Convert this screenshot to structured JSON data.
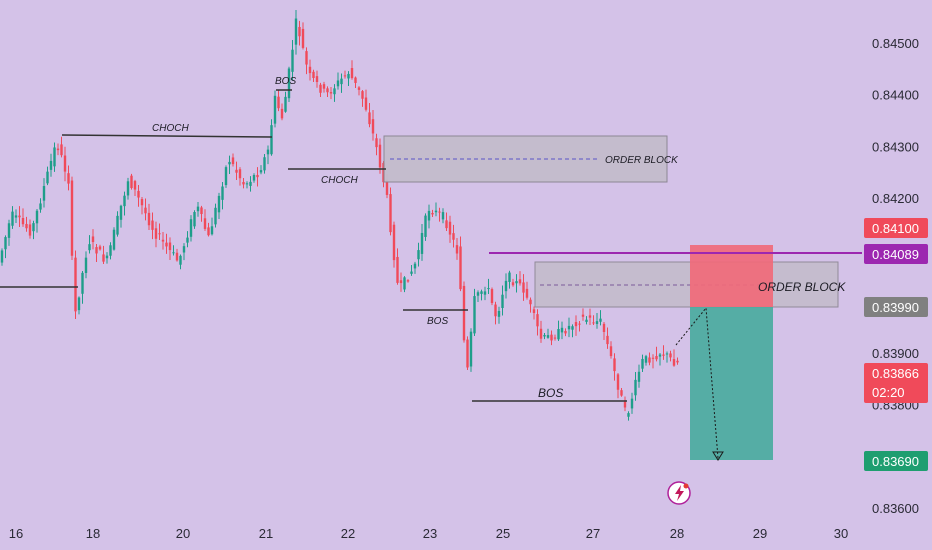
{
  "chart_data": {
    "type": "candlestick",
    "x_ticks": [
      "16",
      "18",
      "20",
      "21",
      "22",
      "23",
      "25",
      "27",
      "28",
      "29",
      "30"
    ],
    "y_ticks": [
      "0.84500",
      "0.84400",
      "0.84300",
      "0.84200",
      "0.84100",
      "0.84000",
      "0.83900",
      "0.83800",
      "0.83700",
      "0.83600"
    ],
    "ylim": [
      0.836,
      0.845
    ],
    "price_tags": [
      {
        "value": "0.84100",
        "color": "#f04a5a"
      },
      {
        "value": "0.84089",
        "color": "#9c27b0"
      },
      {
        "value": "0.83990",
        "color": "#808080"
      },
      {
        "value": "0.83866",
        "color": "#f04a5a",
        "sub": "02:20"
      },
      {
        "value": "0.83690",
        "color": "#1e9e70"
      }
    ],
    "annotations": [
      {
        "label": "CHOCH",
        "y_price": 0.8433
      },
      {
        "label": "BOS",
        "y_price": 0.8441
      },
      {
        "label": "CHOCH",
        "y_price": 0.84255
      },
      {
        "label": "ORDER BLOCK",
        "zone": [
          0.84225,
          0.84315
        ]
      },
      {
        "label": "BOS",
        "y_price": 0.83995
      },
      {
        "label": "ORDER BLOCK",
        "zone": [
          0.8399,
          0.84075
        ]
      },
      {
        "label": "BOS",
        "y_price": 0.83805
      }
    ],
    "resistance_level": 0.84089,
    "trade": {
      "entry": 0.8399,
      "stop_loss": 0.841,
      "take_profit": 0.8369
    }
  },
  "colors": {
    "background": "#d4c2e8",
    "bull": "#1e9e8a",
    "bear": "#f04a5a",
    "zone": "#c4bccc",
    "stop_zone": "#f06a7a",
    "target_zone": "#4aab9e",
    "resistance": "#9c27b0"
  },
  "badge_icon": "lightning-icon"
}
